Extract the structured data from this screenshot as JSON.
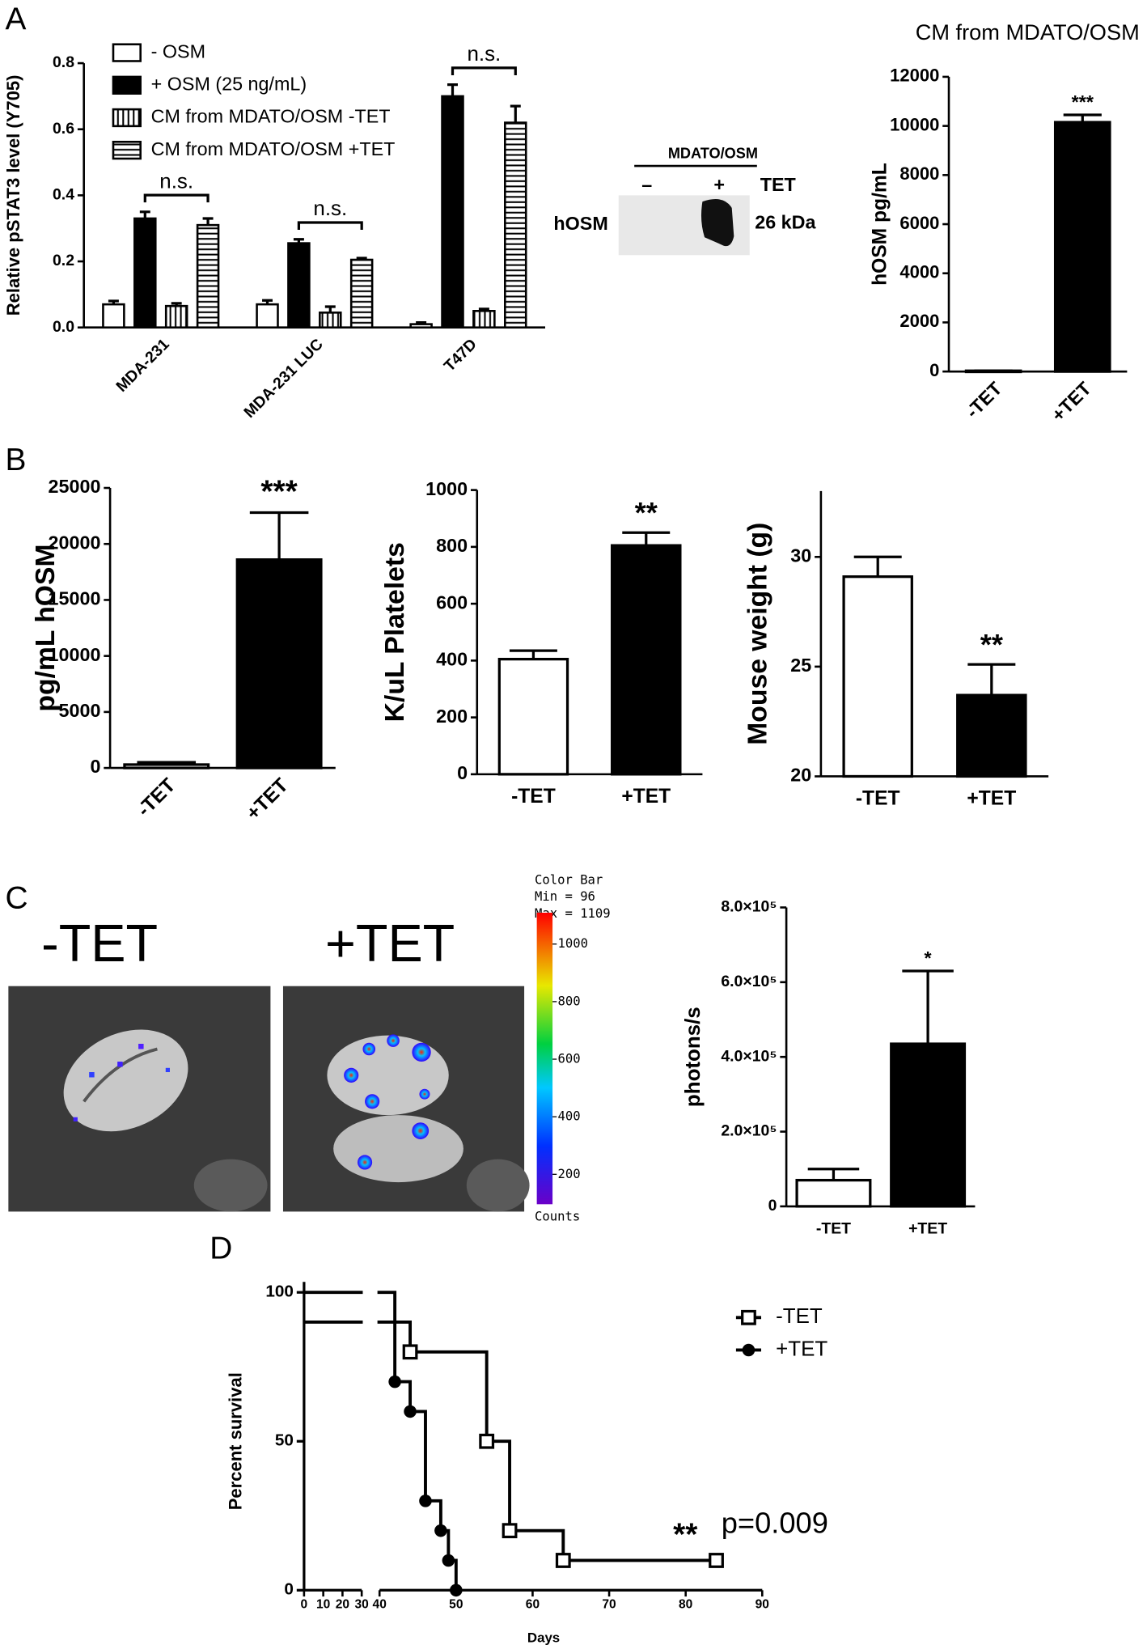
{
  "panel_labels": [
    "A",
    "B",
    "C",
    "D"
  ],
  "blot": {
    "title": "MDATO/OSM",
    "lanes": [
      "–",
      "+"
    ],
    "treatment": "TET",
    "protein": "hOSM",
    "size": "26 kDa"
  },
  "imaging": {
    "labels": [
      "-TET",
      "+TET"
    ],
    "colorbar": {
      "title": "Color Bar",
      "min_label": "Min = 96",
      "max_label": "Max = 1109",
      "clim": [
        96,
        1109
      ],
      "ticks": [
        200,
        400,
        600,
        800,
        1000
      ],
      "unit": "Counts"
    }
  },
  "chart_data": [
    {
      "type": "bar",
      "ylabel": "Relative pSTAT3 level (Y705)",
      "categories": [
        "MDA-231",
        "MDA-231 LUC",
        "T47D"
      ],
      "series": [
        {
          "name": "- OSM",
          "color": "#ffffff",
          "values": [
            0.07,
            0.07,
            0.01
          ],
          "errors": [
            0.01,
            0.012,
            0.005
          ]
        },
        {
          "name": "+ OSM (25 ng/mL)",
          "color": "#000000",
          "values": [
            0.33,
            0.255,
            0.7
          ],
          "errors": [
            0.02,
            0.012,
            0.035
          ]
        },
        {
          "name": "CM from MDATO/OSM -TET",
          "color": "#ffffff",
          "hatch": "vertical",
          "values": [
            0.065,
            0.045,
            0.05
          ],
          "errors": [
            0.008,
            0.018,
            0.006
          ]
        },
        {
          "name": "CM from MDATO/OSM +TET",
          "color": "#ffffff",
          "hatch": "horizontal",
          "values": [
            0.31,
            0.205,
            0.62
          ],
          "errors": [
            0.02,
            0.005,
            0.05
          ]
        }
      ],
      "ylim": [
        0,
        0.8
      ],
      "yticks": [
        {
          "value": 0,
          "label": "0.0"
        },
        0.2,
        0.4,
        0.6,
        0.8
      ],
      "annotations": [
        "n.s.",
        "n.s.",
        "n.s."
      ]
    },
    {
      "type": "bar",
      "title": "CM from MDATO/OSM",
      "ylabel": "hOSM pg/mL",
      "categories": [
        "-TET",
        "+TET"
      ],
      "colors": [
        "#ffffff",
        "#000000"
      ],
      "values": [
        30,
        10150
      ],
      "errors": [
        0,
        300
      ],
      "ylim": [
        0,
        12000
      ],
      "yticks": [
        0,
        2000,
        4000,
        6000,
        8000,
        10000,
        12000
      ],
      "annotation": "***"
    },
    {
      "type": "bar",
      "ylabel": "pg/mL hOSM",
      "categories": [
        "-TET",
        "+TET"
      ],
      "colors": [
        "#ffffff",
        "#000000"
      ],
      "values": [
        300,
        18600
      ],
      "errors": [
        200,
        4200
      ],
      "ylim": [
        0,
        25000
      ],
      "yticks": [
        0,
        5000,
        10000,
        15000,
        20000,
        25000
      ],
      "annotation": "***"
    },
    {
      "type": "bar",
      "ylabel": "K/uL Platelets",
      "categories": [
        "-TET",
        "+TET"
      ],
      "colors": [
        "#ffffff",
        "#000000"
      ],
      "values": [
        405,
        805
      ],
      "errors": [
        30,
        45
      ],
      "ylim": [
        0,
        1000
      ],
      "yticks": [
        0,
        200,
        400,
        600,
        800,
        1000
      ],
      "annotation": "**"
    },
    {
      "type": "bar",
      "ylabel": "Mouse weight (g)",
      "categories": [
        "-TET",
        "+TET"
      ],
      "colors": [
        "#ffffff",
        "#000000"
      ],
      "values": [
        29.1,
        23.7
      ],
      "errors": [
        0.9,
        1.4
      ],
      "ylim": [
        20,
        33
      ],
      "yticks": [
        20,
        25,
        30
      ],
      "annotation": "**"
    },
    {
      "type": "bar",
      "ylabel": "photons/s",
      "categories": [
        "-TET",
        "+TET"
      ],
      "colors": [
        "#ffffff",
        "#000000"
      ],
      "values": [
        70000,
        435000
      ],
      "errors": [
        30000,
        195000
      ],
      "ylim": [
        0,
        800000
      ],
      "yticks": [
        0,
        {
          "value": 200000,
          "label": "2.0×10⁵"
        },
        {
          "value": 400000,
          "label": "4.0×10⁵"
        },
        {
          "value": 600000,
          "label": "6.0×10⁵"
        },
        {
          "value": 800000,
          "label": "8.0×10⁵"
        }
      ],
      "annotation": "*"
    },
    {
      "type": "survival",
      "xlabel": "Days",
      "ylabel": "Percent survival",
      "series": [
        {
          "name": "-TET",
          "marker": "square",
          "color": "#000000",
          "x": [
            0,
            44,
            54,
            57,
            64,
            84
          ],
          "values": [
            90,
            80,
            50,
            20,
            10,
            10
          ]
        },
        {
          "name": "+TET",
          "marker": "circle",
          "color": "#000000",
          "x": [
            0,
            42,
            44,
            46,
            48,
            49,
            50
          ],
          "values": [
            100,
            70,
            60,
            30,
            20,
            10,
            0
          ]
        }
      ],
      "xlim": [
        0,
        90
      ],
      "xbreak": [
        30,
        40
      ],
      "xticks": [
        0,
        10,
        20,
        30,
        40,
        50,
        60,
        70,
        80,
        90
      ],
      "ylim": [
        0,
        100
      ],
      "yticks": [
        0,
        50,
        100
      ],
      "annotations": [
        "**",
        "p=0.009"
      ]
    }
  ]
}
